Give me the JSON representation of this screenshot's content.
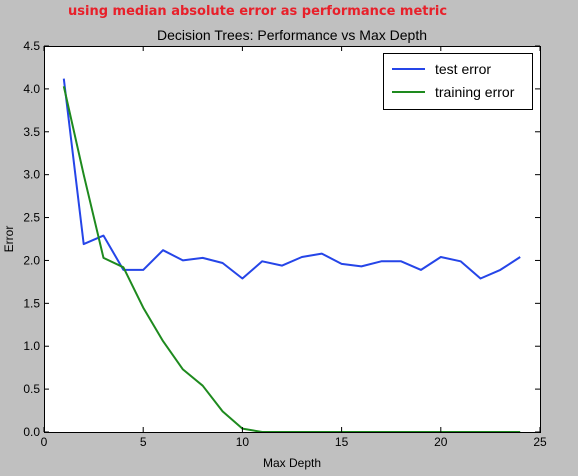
{
  "annotation": "using median absolute error as performance metric",
  "chart_data": {
    "type": "line",
    "title": "Decision Trees: Performance vs Max Depth",
    "xlabel": "Max Depth",
    "ylabel": "Error",
    "xlim": [
      0,
      25
    ],
    "ylim": [
      0.0,
      4.5
    ],
    "xticks": [
      0,
      5,
      10,
      15,
      20,
      25
    ],
    "yticks": [
      0.0,
      0.5,
      1.0,
      1.5,
      2.0,
      2.5,
      3.0,
      3.5,
      4.0,
      4.5
    ],
    "grid": false,
    "legend_position": "top-right",
    "x": [
      1,
      2,
      3,
      4,
      5,
      6,
      7,
      8,
      9,
      10,
      11,
      12,
      13,
      14,
      15,
      16,
      17,
      18,
      19,
      20,
      21,
      22,
      23,
      24
    ],
    "series": [
      {
        "name": "test error",
        "color": "#2545e8",
        "values": [
          4.12,
          2.19,
          2.29,
          1.89,
          1.89,
          2.12,
          2.0,
          2.03,
          1.97,
          1.79,
          1.99,
          1.94,
          2.04,
          2.08,
          1.96,
          1.93,
          1.99,
          1.99,
          1.89,
          2.04,
          1.99,
          1.79,
          1.89,
          2.04
        ]
      },
      {
        "name": "training error",
        "color": "#1e8a1e",
        "values": [
          4.03,
          3.0,
          2.03,
          1.92,
          1.45,
          1.06,
          0.73,
          0.54,
          0.24,
          0.04,
          0.0,
          0.0,
          0.0,
          0.0,
          0.0,
          0.0,
          0.0,
          0.0,
          0.0,
          0.0,
          0.0,
          0.0,
          0.0,
          0.0
        ]
      }
    ]
  }
}
